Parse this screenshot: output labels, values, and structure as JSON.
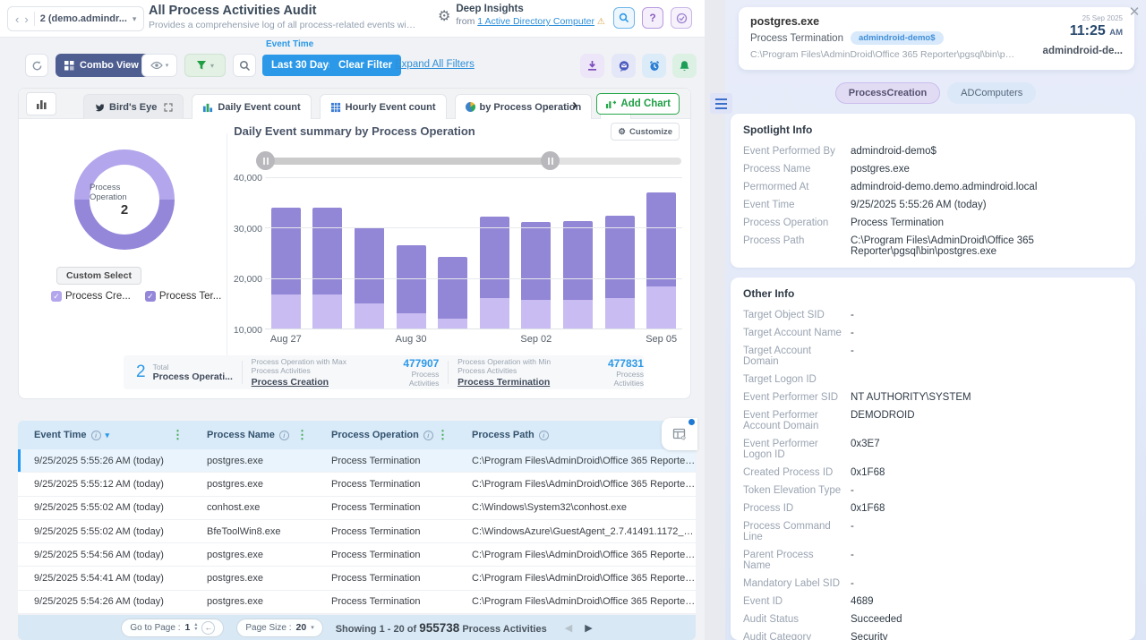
{
  "header": {
    "breadcrumb": "2 (demo.admindr...",
    "title": "All Process Activities Audit",
    "subtitle": "Provides a comprehensive log of all process-related events within the se...",
    "deep_insights_title": "Deep Insights",
    "deep_insights_from": "from",
    "deep_insights_link": "1 Active Directory Computer"
  },
  "toolbar": {
    "combo_view_label": "Combo View",
    "event_time_label": "Event Time",
    "last_30_days_label": "Last 30 Days",
    "clear_filter_label": "Clear Filter",
    "expand_all_filters_label": "Expand All Filters"
  },
  "chart_tabs": {
    "tabs": [
      {
        "label": "Bird's Eye",
        "icon": "bird",
        "muted": true,
        "expand": true
      },
      {
        "label": "Daily Event count",
        "icon": "bars"
      },
      {
        "label": "Hourly Event count",
        "icon": "grid"
      },
      {
        "label": "by Process Operation",
        "icon": "pie"
      },
      {
        "label": "",
        "icon": "barsmini"
      }
    ],
    "add_chart_label": "Add Chart",
    "customize_label": "Customize"
  },
  "chart_data": [
    {
      "type": "pie",
      "subtype": "donut",
      "center_label": "Process Operation",
      "center_value": "2",
      "slices": [
        {
          "label": "Process Creation",
          "value": 477907,
          "color": "#b3a6ec"
        },
        {
          "label": "Process Termination",
          "value": 477831,
          "color": "#9487da"
        }
      ],
      "custom_select_label": "Custom Select",
      "legend": [
        {
          "label": "Process Cre...",
          "color": "#b3a6ec"
        },
        {
          "label": "Process Ter...",
          "color": "#9487da"
        }
      ],
      "legend_position": "bottom"
    },
    {
      "type": "bar",
      "stacked": true,
      "title": "Daily Event summary by Process Operation",
      "x": [
        "Aug 27",
        "Aug 28",
        "Aug 29",
        "Aug 30",
        "Aug 31",
        "Sep 01",
        "Sep 02",
        "Sep 03",
        "Sep 04",
        "Sep 05"
      ],
      "x_tick_every": 3,
      "series": [
        {
          "name": "Process Creation",
          "color": "#c9bcf2",
          "values": [
            16800,
            16800,
            14900,
            13100,
            12000,
            16100,
            15600,
            15600,
            16100,
            18300
          ]
        },
        {
          "name": "Process Termination",
          "color": "#9286d6",
          "values": [
            17200,
            17200,
            15100,
            13400,
            12200,
            16100,
            15600,
            15700,
            16200,
            18700
          ]
        }
      ],
      "totals": [
        34000,
        34000,
        30000,
        26500,
        24200,
        32200,
        31200,
        31300,
        32300,
        37000
      ],
      "ylim": [
        10000,
        40000
      ],
      "yticks": [
        "40,000",
        "30,000",
        "20,000",
        "10,000"
      ],
      "grid": true
    }
  ],
  "stats": {
    "total_value": "2",
    "total_label_top": "Total",
    "total_label_bottom": "Process Operati...",
    "max_caption": "Process Operation with Max Process Activities",
    "max_name": "Process Creation",
    "max_value": "477907",
    "max_unit": "Process Activities",
    "min_caption": "Process Operation with Min Process Activities",
    "min_name": "Process Termination",
    "min_value": "477831",
    "min_unit": "Process Activities"
  },
  "table": {
    "columns": [
      {
        "label": "Event Time",
        "info": true,
        "sorted": true,
        "menu": true
      },
      {
        "label": "Process Name",
        "info": true,
        "menu": true
      },
      {
        "label": "Process Operation",
        "info": true,
        "menu": true
      },
      {
        "label": "Process Path",
        "info": true,
        "menu": false
      }
    ],
    "selected_row": 0,
    "rows": [
      [
        "9/25/2025 5:55:26 AM (today)",
        "postgres.exe",
        "Process Termination",
        "C:\\Program Files\\AdminDroid\\Office 365 Reporter\\..."
      ],
      [
        "9/25/2025 5:55:12 AM (today)",
        "postgres.exe",
        "Process Termination",
        "C:\\Program Files\\AdminDroid\\Office 365 Reporter\\..."
      ],
      [
        "9/25/2025 5:55:02 AM (today)",
        "conhost.exe",
        "Process Termination",
        "C:\\Windows\\System32\\conhost.exe"
      ],
      [
        "9/25/2025 5:55:02 AM (today)",
        "BfeToolWin8.exe",
        "Process Termination",
        "C:\\WindowsAzure\\GuestAgent_2.7.41491.1172_20..."
      ],
      [
        "9/25/2025 5:54:56 AM (today)",
        "postgres.exe",
        "Process Termination",
        "C:\\Program Files\\AdminDroid\\Office 365 Reporter\\..."
      ],
      [
        "9/25/2025 5:54:41 AM (today)",
        "postgres.exe",
        "Process Termination",
        "C:\\Program Files\\AdminDroid\\Office 365 Reporter\\..."
      ],
      [
        "9/25/2025 5:54:26 AM (today)",
        "postgres.exe",
        "Process Termination",
        "C:\\Program Files\\AdminDroid\\Office 365 Reporter\\..."
      ]
    ]
  },
  "pagination": {
    "go_to_page_label": "Go to Page :",
    "page_value": "1",
    "page_size_label": "Page Size :",
    "page_size_value": "20",
    "showing_prefix": "Showing 1 - 20 of",
    "total_count": "955738",
    "showing_suffix": "Process Activities"
  },
  "panel": {
    "process_name": "postgres.exe",
    "operation": "Process Termination",
    "computer_badge": "admindroid-demo$",
    "path": "C:\\Program Files\\AdminDroid\\Office 365 Reporter\\pgsql\\bin\\postgres.exe",
    "date": "25 Sep 2025",
    "time": "11:25",
    "time_suffix": "AM",
    "computer_short": "admindroid-de...",
    "tags": [
      {
        "label": "ProcessCreation"
      },
      {
        "label": "ADComputers"
      }
    ],
    "spotlight_title": "Spotlight Info",
    "spotlight_rows": [
      {
        "label": "Event Performed By",
        "value": "admindroid-demo$"
      },
      {
        "label": "Process Name",
        "value": "postgres.exe"
      },
      {
        "label": "Permormed At",
        "value": "admindroid-demo.demo.admindroid.local"
      },
      {
        "label": "Event Time",
        "value": "9/25/2025 5:55:26 AM (today)"
      },
      {
        "label": "Process Operation",
        "value": "Process Termination"
      },
      {
        "label": "Process Path",
        "value": "C:\\Program Files\\AdminDroid\\Office 365 Reporter\\pgsql\\bin\\postgres.exe"
      }
    ],
    "other_title": "Other Info",
    "other_rows": [
      {
        "label": "Target Object SID",
        "value": "-"
      },
      {
        "label": "Target Account Name",
        "value": "-"
      },
      {
        "label": "Target Account Domain",
        "value": "-"
      },
      {
        "label": "Target Logon ID",
        "value": ""
      },
      {
        "label": "Event Performer SID",
        "value": "NT AUTHORITY\\SYSTEM"
      },
      {
        "label": "Event Performer Account Domain",
        "value": "DEMODROID"
      },
      {
        "label": "Event Performer Logon ID",
        "value": "0x3E7"
      },
      {
        "label": "Created Process ID",
        "value": "0x1F68"
      },
      {
        "label": "Token Elevation Type",
        "value": "-"
      },
      {
        "label": "Process ID",
        "value": "0x1F68"
      },
      {
        "label": "Process Command Line",
        "value": "-"
      },
      {
        "label": "Parent Process Name",
        "value": "-"
      },
      {
        "label": "Mandatory Label SID",
        "value": "-"
      },
      {
        "label": "Event ID",
        "value": "4689"
      },
      {
        "label": "Audit Status",
        "value": "Succeeded"
      },
      {
        "label": "Audit Category",
        "value": "Security"
      }
    ]
  },
  "colors": {
    "accent_blue": "#2b99e8",
    "accent_green": "#27a74a",
    "bar_light": "#c9bcf2",
    "bar_dark": "#9286d6",
    "table_header_bg": "#d9eaf8",
    "panel_bg": "#e9edfa"
  }
}
